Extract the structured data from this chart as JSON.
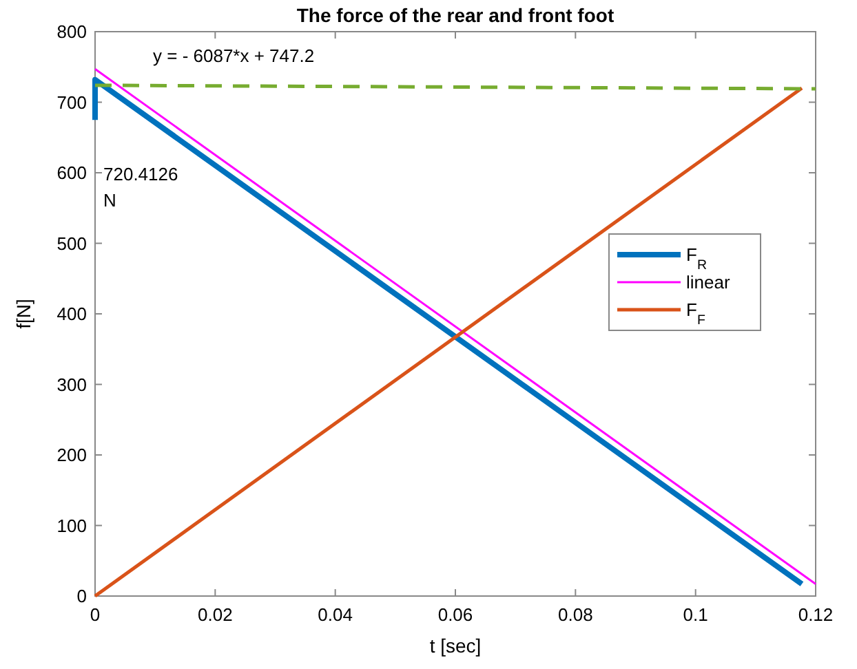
{
  "chart_data": {
    "type": "line",
    "title": "The force of the  rear and front foot",
    "xlabel": "t [sec]",
    "ylabel": "f[N]",
    "xlim": [
      0,
      0.12
    ],
    "xticks": [
      0,
      0.02,
      0.04,
      0.06,
      0.08,
      0.1,
      0.12
    ],
    "ylim": [
      0,
      800
    ],
    "yticks": [
      0,
      100,
      200,
      300,
      400,
      500,
      600,
      700,
      800
    ],
    "series": [
      {
        "name": "F$_{R}$",
        "color": "#0072bd",
        "x": [
          0,
          0,
          0.1177
        ],
        "values": [
          675,
          732,
          17
        ]
      },
      {
        "name": "linear",
        "color": "#ff00ff",
        "x": [
          0,
          0.12
        ],
        "values": [
          747,
          17
        ]
      },
      {
        "name": "F$_{F}$",
        "color": "#d95319",
        "x": [
          0,
          0.1177
        ],
        "values": [
          0,
          720
        ]
      },
      {
        "color": "#77ac30",
        "line_style": "dashed",
        "x": [
          0,
          0.12
        ],
        "values": [
          724,
          719
        ]
      }
    ],
    "annotations": [
      "y = - 6087*x + 747.2",
      "720.4126 N"
    ],
    "legend": "right",
    "grid": false
  }
}
